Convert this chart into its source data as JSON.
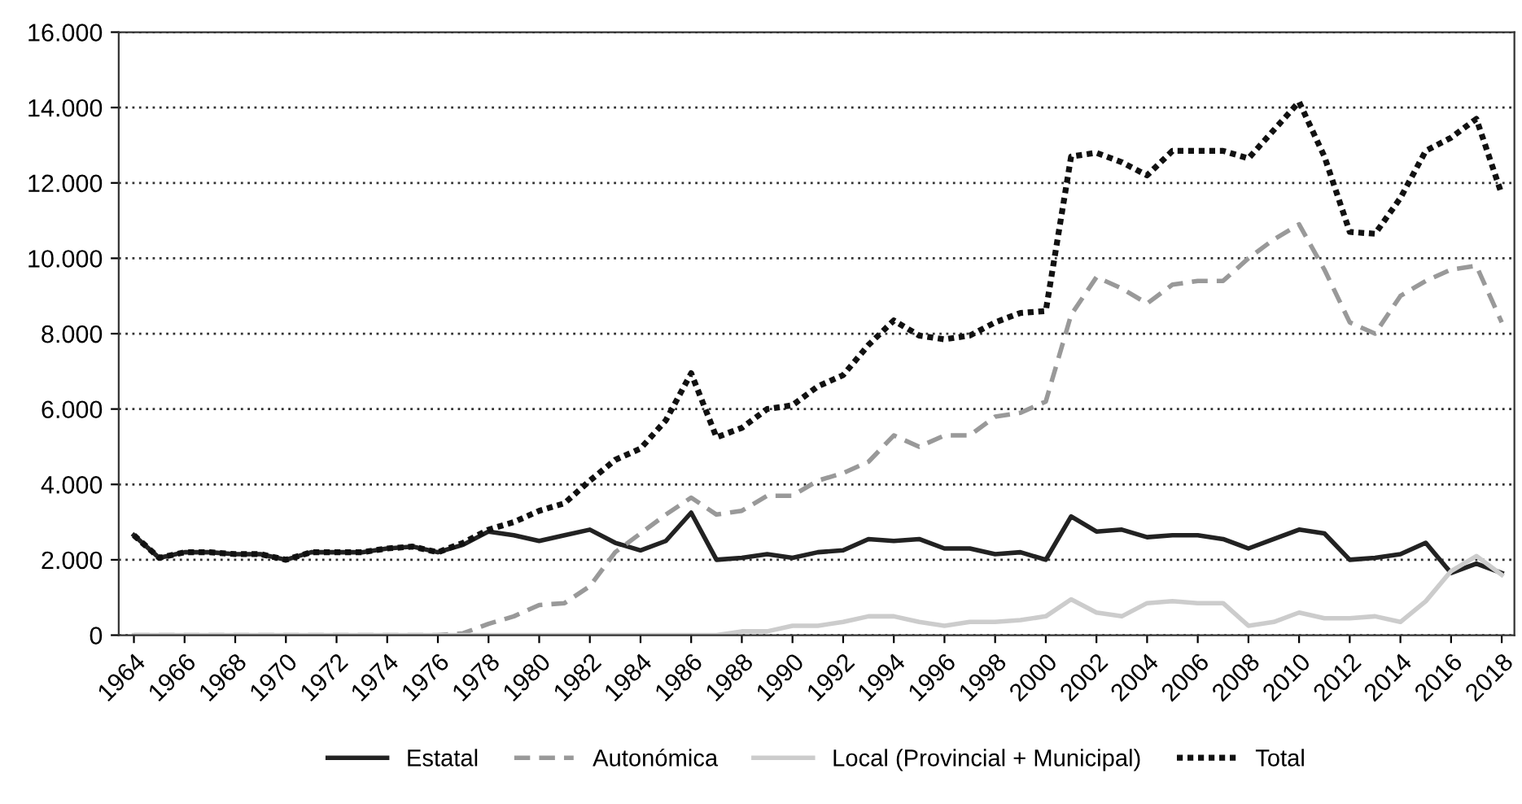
{
  "chart_data": {
    "type": "line",
    "x": [
      1964,
      1965,
      1966,
      1967,
      1968,
      1969,
      1970,
      1971,
      1972,
      1973,
      1974,
      1975,
      1976,
      1977,
      1978,
      1979,
      1980,
      1981,
      1982,
      1983,
      1984,
      1985,
      1986,
      1987,
      1988,
      1989,
      1990,
      1991,
      1992,
      1993,
      1994,
      1995,
      1996,
      1997,
      1998,
      1999,
      2000,
      2001,
      2002,
      2003,
      2004,
      2005,
      2006,
      2007,
      2008,
      2009,
      2010,
      2011,
      2012,
      2013,
      2014,
      2015,
      2016,
      2017,
      2018
    ],
    "series": [
      {
        "name": "Estatal",
        "color": "#222222",
        "line_style": "solid",
        "values": [
          2650,
          2050,
          2200,
          2200,
          2150,
          2150,
          2000,
          2200,
          2200,
          2200,
          2300,
          2350,
          2200,
          2400,
          2750,
          2650,
          2500,
          2650,
          2800,
          2450,
          2250,
          2500,
          3250,
          2000,
          2050,
          2150,
          2050,
          2200,
          2250,
          2550,
          2500,
          2550,
          2300,
          2300,
          2150,
          2200,
          2000,
          3150,
          2750,
          2800,
          2600,
          2650,
          2650,
          2550,
          2300,
          2550,
          2800,
          2700,
          2000,
          2050,
          2150,
          2450,
          1650,
          1900,
          1650
        ]
      },
      {
        "name": "Autonómica",
        "color": "#999999",
        "line_style": "dashed",
        "values": [
          0,
          0,
          0,
          0,
          0,
          0,
          0,
          0,
          0,
          0,
          0,
          0,
          0,
          50,
          300,
          500,
          800,
          850,
          1300,
          2200,
          2700,
          3200,
          3650,
          3200,
          3300,
          3700,
          3700,
          4100,
          4300,
          4600,
          5300,
          5000,
          5300,
          5300,
          5800,
          5900,
          6200,
          8500,
          9500,
          9200,
          8800,
          9300,
          9400,
          9400,
          10000,
          10500,
          10900,
          9700,
          8300,
          8000,
          9000,
          9400,
          9700,
          9800,
          8300
        ]
      },
      {
        "name": "Local (Provincial + Municipal)",
        "color": "#cccccc",
        "line_style": "solid",
        "values": [
          0,
          0,
          0,
          0,
          0,
          0,
          0,
          0,
          0,
          0,
          0,
          0,
          0,
          0,
          0,
          0,
          0,
          0,
          0,
          0,
          0,
          0,
          0,
          0,
          100,
          100,
          250,
          250,
          350,
          500,
          500,
          350,
          250,
          350,
          350,
          400,
          500,
          950,
          600,
          500,
          850,
          900,
          850,
          850,
          250,
          350,
          600,
          450,
          450,
          500,
          350,
          900,
          1700,
          2100,
          1600
        ]
      },
      {
        "name": "Total",
        "color": "#111111",
        "line_style": "dotted",
        "values": [
          2650,
          2050,
          2200,
          2200,
          2150,
          2150,
          2000,
          2200,
          2200,
          2200,
          2300,
          2350,
          2200,
          2450,
          2800,
          3000,
          3300,
          3500,
          4100,
          4650,
          4950,
          5700,
          6950,
          5250,
          5500,
          6000,
          6100,
          6600,
          6900,
          7700,
          8350,
          7950,
          7850,
          7950,
          8300,
          8550,
          8600,
          12700,
          12800,
          12550,
          12200,
          12850,
          12850,
          12850,
          12650,
          13400,
          14150,
          12700,
          10700,
          10650,
          11600,
          12850,
          13200,
          13700,
          11700
        ]
      }
    ],
    "xlim": [
      1963.4,
      2018.5
    ],
    "xticks": [
      1964,
      1966,
      1968,
      1970,
      1972,
      1974,
      1976,
      1978,
      1980,
      1982,
      1984,
      1986,
      1988,
      1990,
      1992,
      1994,
      1996,
      1998,
      2000,
      2002,
      2004,
      2006,
      2008,
      2010,
      2012,
      2014,
      2016,
      2018
    ],
    "ylim": [
      0,
      16000
    ],
    "yticks": [
      0,
      {
        "value": 2000,
        "label": "2.000"
      },
      {
        "value": 4000,
        "label": "4.000"
      },
      {
        "value": 6000,
        "label": "6.000"
      },
      {
        "value": 8000,
        "label": "8.000"
      },
      {
        "value": 10000,
        "label": "10.000"
      },
      {
        "value": 12000,
        "label": "12.000"
      },
      {
        "value": 14000,
        "label": "14.000"
      },
      {
        "value": 16000,
        "label": "16.000"
      }
    ],
    "grid": "y",
    "legend": "bottom",
    "marker": "none"
  }
}
